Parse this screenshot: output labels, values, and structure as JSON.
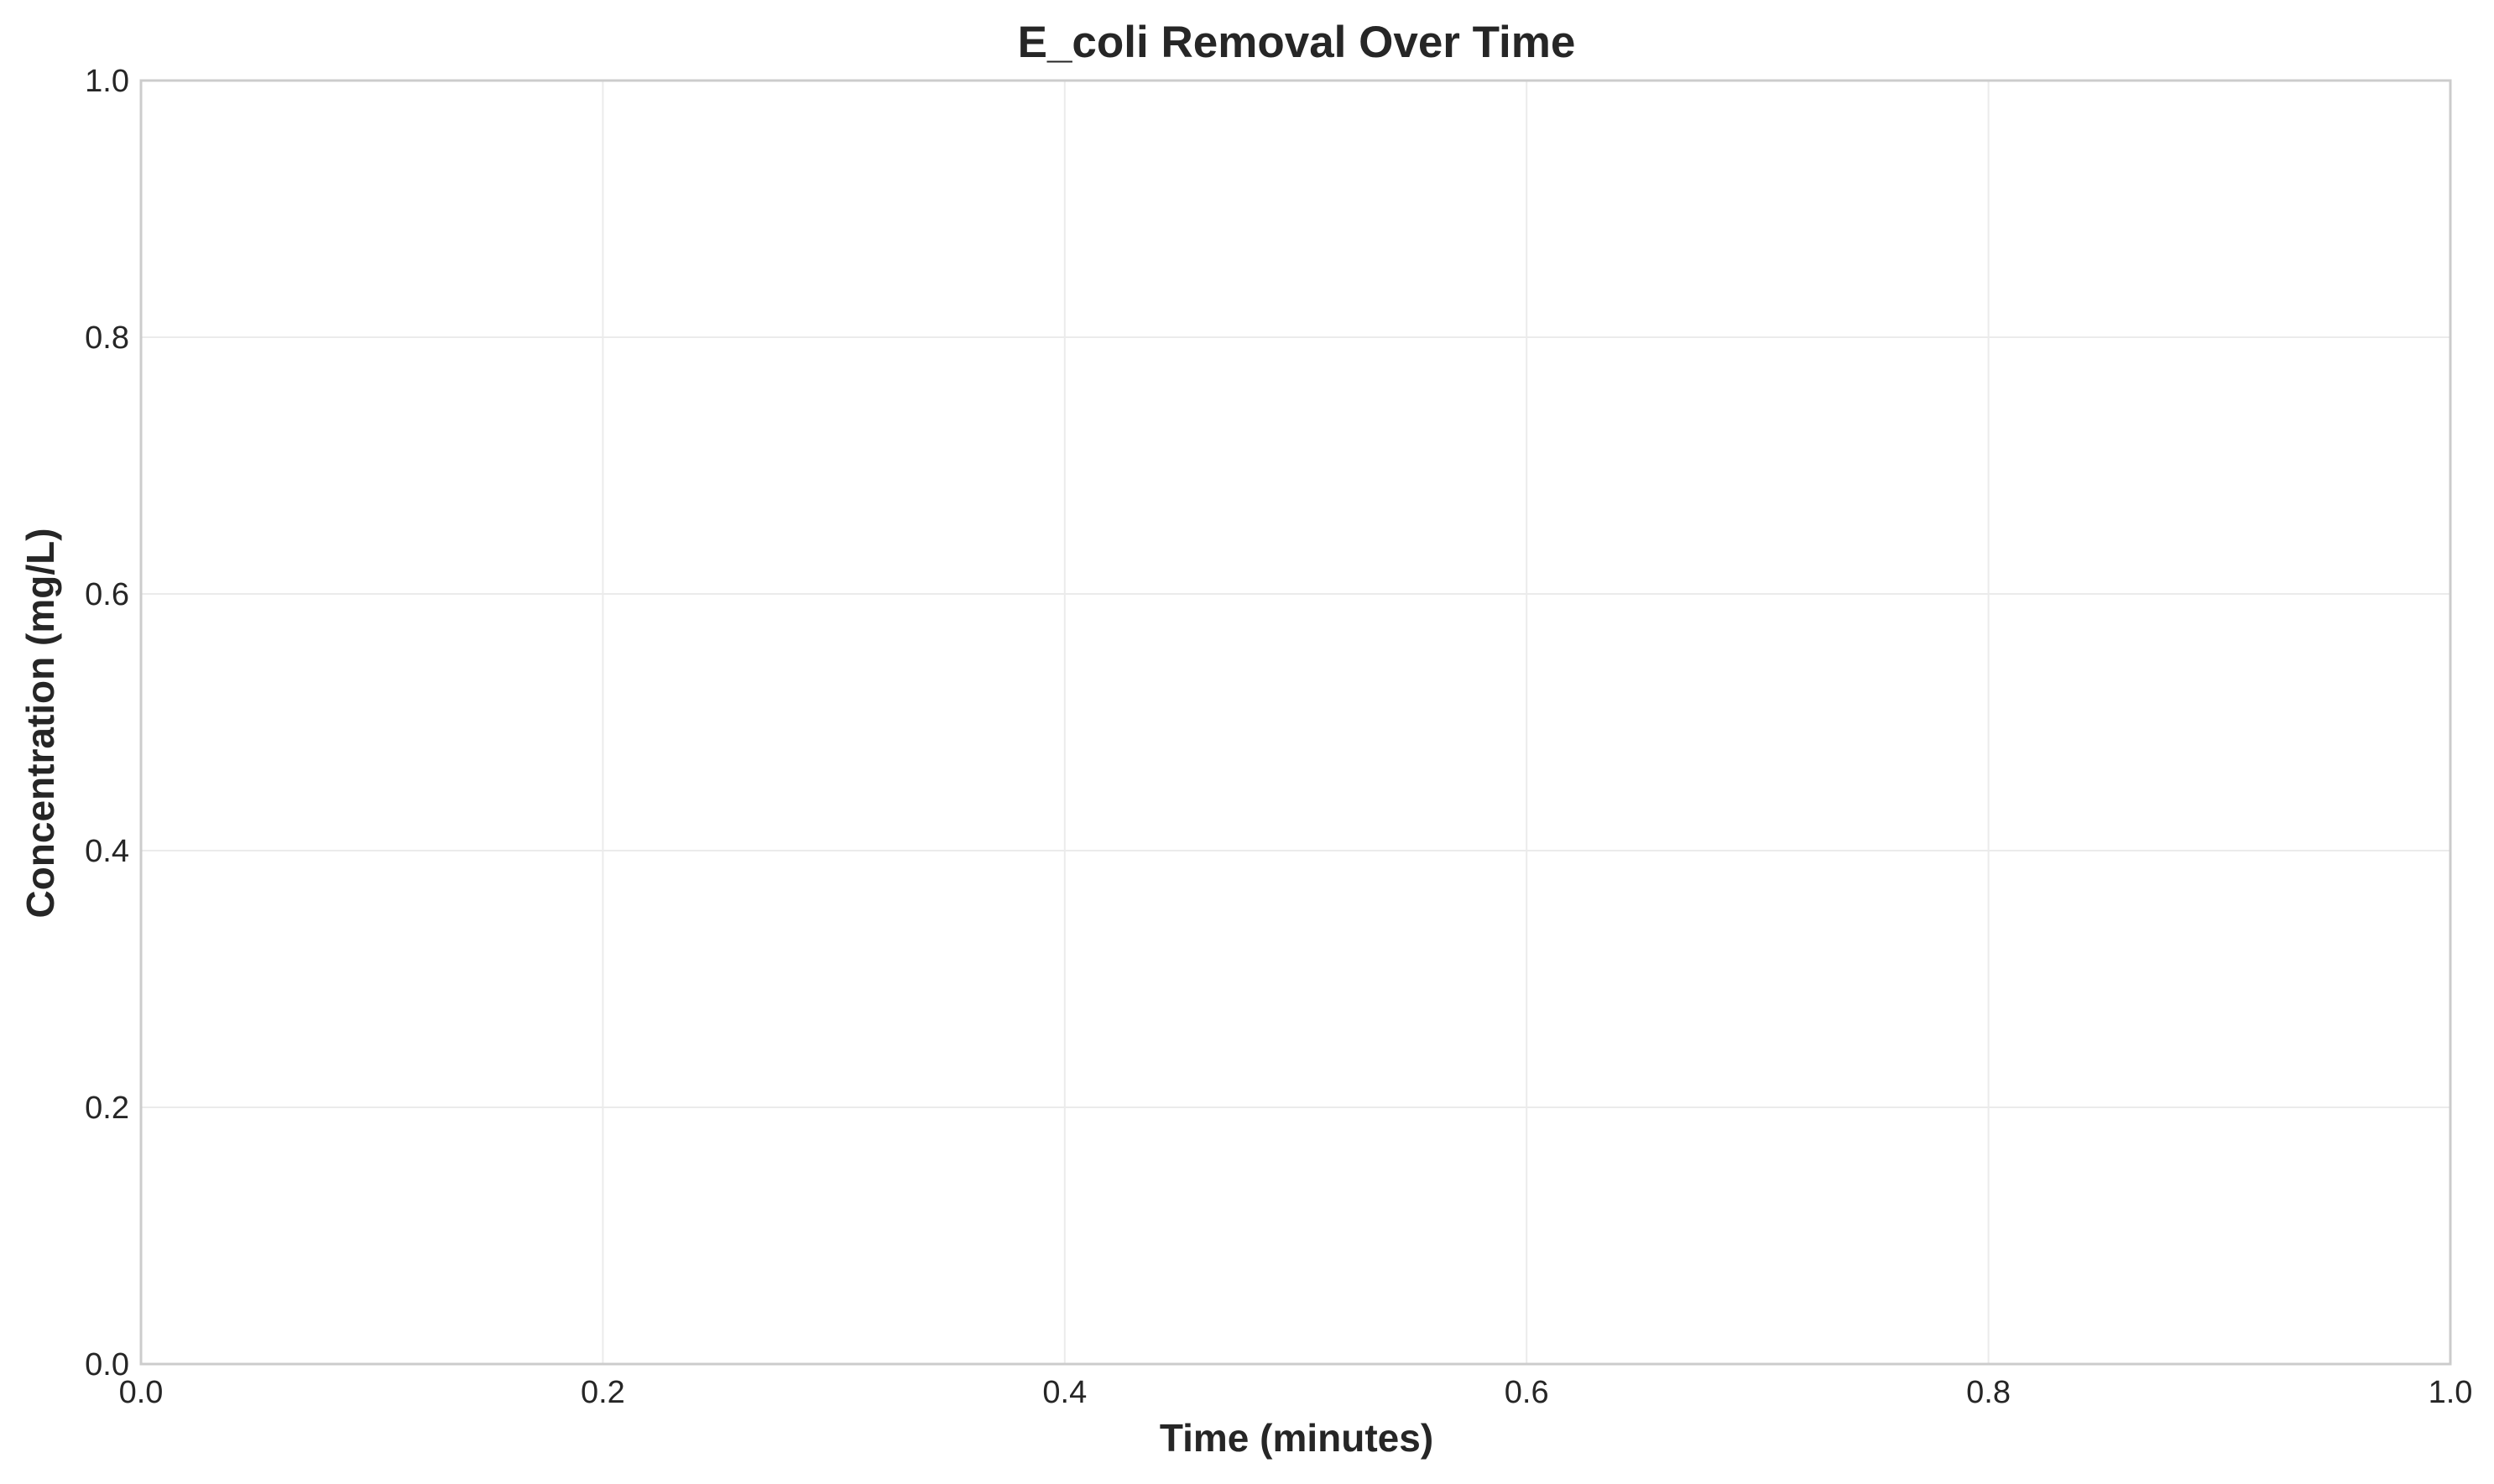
{
  "chart_data": {
    "type": "line",
    "title": "E_coli Removal Over Time",
    "xlabel": "Time (minutes)",
    "ylabel": "Concentration (mg/L)",
    "xlim": [
      0.0,
      1.0
    ],
    "ylim": [
      0.0,
      1.0
    ],
    "xticks": [
      "0.0",
      "0.2",
      "0.4",
      "0.6",
      "0.8",
      "1.0"
    ],
    "yticks": [
      "0.0",
      "0.2",
      "0.4",
      "0.6",
      "0.8",
      "1.0"
    ],
    "grid": true,
    "series": []
  }
}
